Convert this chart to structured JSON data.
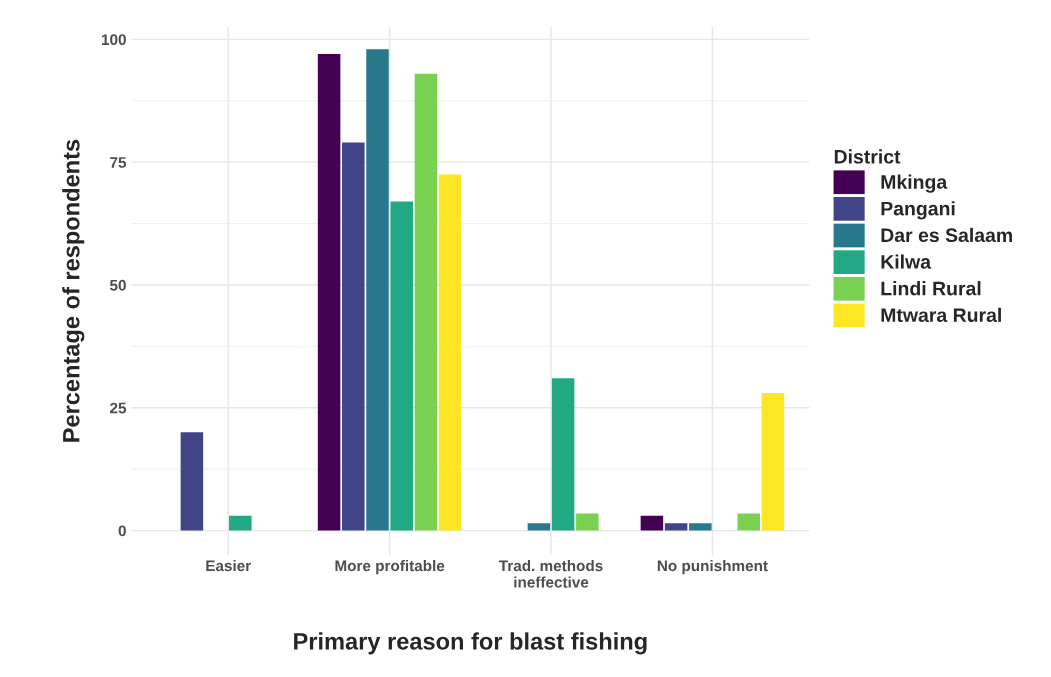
{
  "chart_data": {
    "type": "bar",
    "xlabel": "Primary reason for blast fishing",
    "ylabel": "Percentage of respondents",
    "legend_title": "District",
    "categories": [
      "Easier",
      "More profitable",
      "Trad. methods\nineffective",
      "No punishment"
    ],
    "series": [
      {
        "name": "Mkinga",
        "color": "#440154",
        "values": [
          0,
          97,
          0,
          3
        ]
      },
      {
        "name": "Pangani",
        "color": "#414487",
        "values": [
          20,
          79,
          0,
          1.5
        ]
      },
      {
        "name": "Dar es Salaam",
        "color": "#2a788e",
        "values": [
          0,
          98,
          1.5,
          1.5
        ]
      },
      {
        "name": "Kilwa",
        "color": "#22a884",
        "values": [
          3,
          67,
          31,
          0
        ]
      },
      {
        "name": "Lindi Rural",
        "color": "#7ad151",
        "values": [
          0,
          93,
          3.5,
          3.5
        ]
      },
      {
        "name": "Mtwara Rural",
        "color": "#fde725",
        "values": [
          0,
          72.5,
          0,
          28
        ]
      }
    ],
    "ylim": [
      -5,
      102.5
    ],
    "yticks": [
      0,
      25,
      50,
      75,
      100
    ],
    "grid": true,
    "legend": "right"
  }
}
